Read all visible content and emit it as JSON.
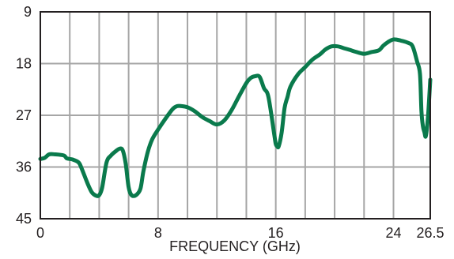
{
  "chart_data": {
    "type": "line",
    "xlabel": "FREQUENCY (GHz)",
    "ylabel": "",
    "xlim": [
      0,
      26.5
    ],
    "ylim": [
      9,
      45
    ],
    "y_inverted": true,
    "grid": true,
    "x_ticks": [
      0,
      2,
      4,
      6,
      8,
      10,
      12,
      14,
      16,
      18,
      20,
      22,
      24,
      26.5
    ],
    "x_tick_labels": [
      "0",
      "",
      "",
      "",
      "8",
      "",
      "",
      "",
      "16",
      "",
      "",
      "",
      "24",
      "26.5"
    ],
    "y_ticks": [
      9,
      18,
      27,
      36,
      45
    ],
    "y_tick_labels": [
      "9",
      "18",
      "27",
      "36",
      "45"
    ],
    "series": [
      {
        "color": "#0a7a4c",
        "x": [
          0,
          0.3,
          0.6,
          1.0,
          1.6,
          1.8,
          2.2,
          2.6,
          2.8,
          3.2,
          3.5,
          3.8,
          4.0,
          4.2,
          4.5,
          4.8,
          5.1,
          5.4,
          5.6,
          5.8,
          6.0,
          6.2,
          6.5,
          6.8,
          7.0,
          7.3,
          7.6,
          8.0,
          8.5,
          9.0,
          9.3,
          9.6,
          10.0,
          10.5,
          11.0,
          11.5,
          12.0,
          12.5,
          13.0,
          13.5,
          14.0,
          14.3,
          14.6,
          14.9,
          15.2,
          15.5,
          15.9,
          16.0,
          16.1,
          16.2,
          16.4,
          16.6,
          16.8,
          17.0,
          17.5,
          18.0,
          18.5,
          19.0,
          19.4,
          19.8,
          20.2,
          20.6,
          21.0,
          21.5,
          22.0,
          22.5,
          23.0,
          23.3,
          23.6,
          24.0,
          24.5,
          25.0,
          25.3,
          25.6,
          25.8,
          25.9,
          26.0,
          26.1,
          26.2,
          26.35,
          26.5
        ],
        "y": [
          34.6,
          34.4,
          33.8,
          33.8,
          34.0,
          34.5,
          34.7,
          35.2,
          36.2,
          38.8,
          40.4,
          41.0,
          40.9,
          39.6,
          35.2,
          34.0,
          33.3,
          32.8,
          33.1,
          35.4,
          39.5,
          40.9,
          40.9,
          39.8,
          36.8,
          33.4,
          31.2,
          29.5,
          27.6,
          25.9,
          25.4,
          25.4,
          25.6,
          26.3,
          27.3,
          28.0,
          28.6,
          27.9,
          26.1,
          23.7,
          21.4,
          20.5,
          20.2,
          20.3,
          22.3,
          23.8,
          30.4,
          32.0,
          32.4,
          32.4,
          30.0,
          25.7,
          23.8,
          22.0,
          19.9,
          18.6,
          17.3,
          16.4,
          15.5,
          15.0,
          15.0,
          15.3,
          15.6,
          16.0,
          16.3,
          16.0,
          15.7,
          14.9,
          14.3,
          13.8,
          14.0,
          14.4,
          15.0,
          17.6,
          19.8,
          26.3,
          28.9,
          29.9,
          30.6,
          27.1,
          20.8
        ]
      }
    ]
  }
}
